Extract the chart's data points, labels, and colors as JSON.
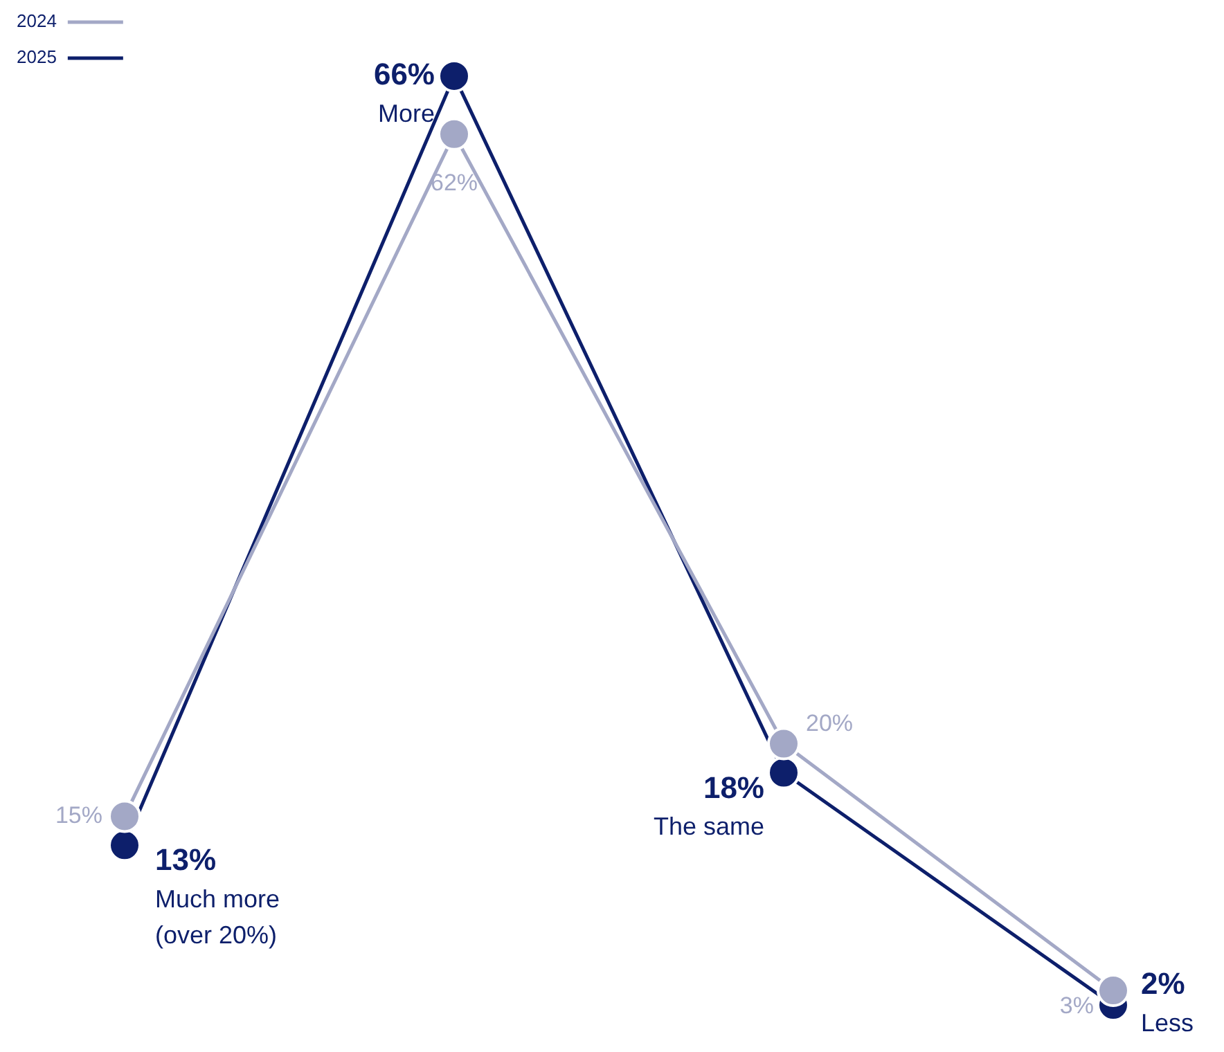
{
  "chart_data": {
    "type": "line",
    "categories": [
      "Much more (over 20%)",
      "More",
      "The same",
      "Less"
    ],
    "series": [
      {
        "name": "2024",
        "color": "#a3a8c6",
        "values": [
          15,
          62,
          20,
          3
        ],
        "value_labels": [
          "15%",
          "62%",
          "20%",
          "3%"
        ]
      },
      {
        "name": "2025",
        "color": "#0d1f6b",
        "values": [
          13,
          66,
          18,
          2
        ],
        "value_labels": [
          "13%",
          "66%",
          "18%",
          "2%"
        ]
      }
    ],
    "legend": "top left",
    "marker": "circle",
    "line_style": "solid"
  }
}
